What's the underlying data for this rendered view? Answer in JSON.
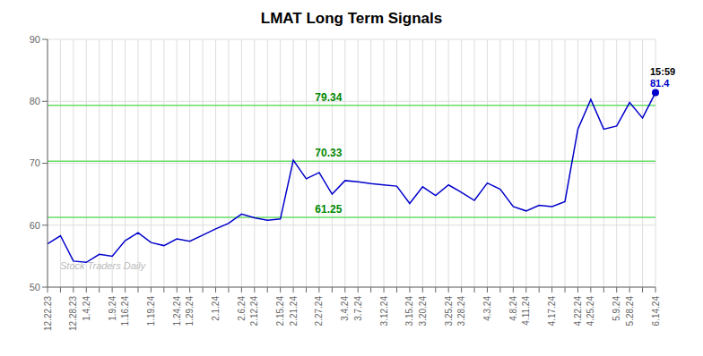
{
  "chart_data": {
    "type": "line",
    "title": "LMAT Long Term Signals",
    "categories": [
      "12.22.23",
      null,
      "12.28.23",
      "1.4.24",
      null,
      "1.9.24",
      "1.16.24",
      null,
      "1.19.24",
      null,
      "1.24.24",
      "1.29.24",
      null,
      "2.1.24",
      null,
      "2.6.24",
      "2.12.24",
      null,
      "2.15.24",
      "2.21.24",
      null,
      "2.27.24",
      null,
      "3.4.24",
      "3.7.24",
      null,
      "3.12.24",
      null,
      "3.15.24",
      "3.20.24",
      null,
      "3.25.24",
      "3.28.24",
      null,
      "4.3.24",
      null,
      "4.8.24",
      "4.11.24",
      null,
      "4.17.24",
      null,
      "4.22.24",
      "4.25.24",
      null,
      "5.9.24",
      "5.28.24",
      null,
      "6.14.24"
    ],
    "values": [
      57.0,
      58.3,
      54.2,
      54.0,
      55.3,
      55.0,
      57.5,
      58.8,
      57.2,
      56.7,
      57.8,
      57.4,
      58.4,
      59.4,
      60.3,
      61.8,
      61.2,
      60.8,
      61.0,
      70.5,
      67.5,
      68.5,
      65.0,
      67.2,
      67.0,
      66.7,
      66.5,
      66.3,
      63.5,
      66.2,
      64.8,
      66.5,
      65.3,
      64.0,
      66.8,
      65.8,
      63.0,
      62.3,
      63.2,
      63.0,
      63.8,
      75.5,
      80.3,
      75.5,
      76.0,
      79.8,
      77.3,
      81.4
    ],
    "color": "#0000cc",
    "ylim": [
      50,
      90
    ],
    "yticks": [
      50,
      60,
      70,
      80,
      90
    ],
    "grid": true,
    "hlines": [
      {
        "value": 61.25,
        "label": "61.25",
        "color": "#66dd66",
        "label_color": "#008800"
      },
      {
        "value": 70.33,
        "label": "70.33",
        "color": "#66dd66",
        "label_color": "#008800"
      },
      {
        "value": 79.34,
        "label": "79.34",
        "color": "#66dd66",
        "label_color": "#008800"
      }
    ],
    "watermark": {
      "text": "Stock Traders Daily",
      "color": "#bbbbbb"
    },
    "last_point_labels": [
      {
        "text": "15:59",
        "color": "#000000"
      },
      {
        "text": "81.4",
        "color": "#0000cc"
      }
    ]
  }
}
